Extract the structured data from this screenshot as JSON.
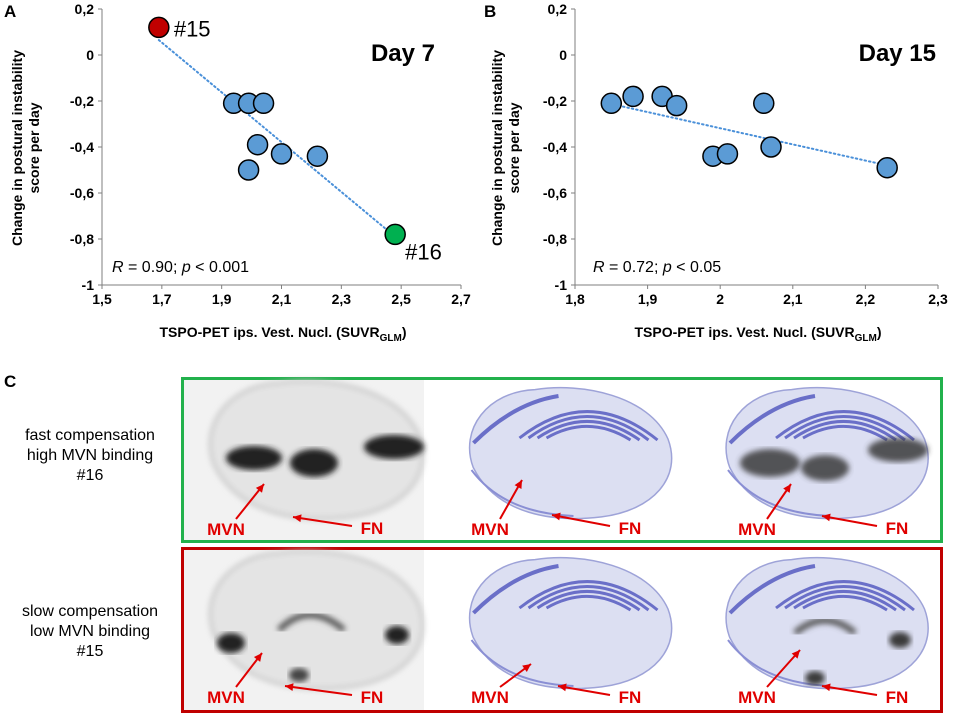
{
  "panels": {
    "a": "A",
    "b": "B",
    "c": "C"
  },
  "charts": {
    "a": {
      "ylabel_line1": "Change in postural instability",
      "ylabel_line2": "score per day",
      "xlabel_main": "TSPO-PET ips. Vest. Nucl. (SUVR",
      "xlabel_sub": "GLM",
      "xlabel_close": ")",
      "stats_r": "R",
      "stats_rest": " = 0.90; ",
      "stats_p": "p",
      "stats_tail": " < 0.001"
    },
    "b": {
      "ylabel_line1": "Change in postural instability",
      "ylabel_line2": "score per day",
      "xlabel_main": "TSPO-PET ips. Vest. Nucl. (SUVR",
      "xlabel_sub": "GLM",
      "xlabel_close": ")",
      "stats_r": "R",
      "stats_rest": " = 0.72; ",
      "stats_p": "p",
      "stats_tail": " < 0.05"
    }
  },
  "chart_data": [
    {
      "type": "scatter",
      "title": "Day 7",
      "xlabel": "TSPO-PET ips. Vest. Nucl. (SUVR GLM)",
      "ylabel": "Change in postural instability score per day",
      "xlim": [
        1.5,
        2.7
      ],
      "ylim": [
        -1,
        0.2
      ],
      "xticks": [
        "1,5",
        "1,7",
        "1,9",
        "2,1",
        "2,3",
        "2,5",
        "2,7"
      ],
      "yticks": [
        "0,2",
        "0",
        "-0,2",
        "-0,4",
        "-0,6",
        "-0,8",
        "-1"
      ],
      "points": [
        {
          "x": 1.69,
          "y": 0.12,
          "color": "#c00000",
          "label": "#15"
        },
        {
          "x": 1.94,
          "y": -0.21,
          "color": "#5b9bd5"
        },
        {
          "x": 1.99,
          "y": -0.21,
          "color": "#5b9bd5"
        },
        {
          "x": 2.04,
          "y": -0.21,
          "color": "#5b9bd5"
        },
        {
          "x": 2.02,
          "y": -0.39,
          "color": "#5b9bd5"
        },
        {
          "x": 2.1,
          "y": -0.43,
          "color": "#5b9bd5"
        },
        {
          "x": 1.99,
          "y": -0.5,
          "color": "#5b9bd5"
        },
        {
          "x": 2.22,
          "y": -0.44,
          "color": "#5b9bd5"
        },
        {
          "x": 2.48,
          "y": -0.78,
          "color": "#00b050",
          "label": "#16"
        }
      ],
      "trendline": [
        [
          1.69,
          0.065
        ],
        [
          2.48,
          -0.79
        ]
      ],
      "annotation": "R = 0.90; p < 0.001"
    },
    {
      "type": "scatter",
      "title": "Day 15",
      "xlabel": "TSPO-PET ips. Vest. Nucl. (SUVR GLM)",
      "ylabel": "Change in postural instability score per day",
      "xlim": [
        1.8,
        2.3
      ],
      "ylim": [
        -1,
        0.2
      ],
      "xticks": [
        "1,8",
        "1,9",
        "2",
        "2,1",
        "2,2",
        "2,3"
      ],
      "yticks": [
        "0,2",
        "0",
        "-0,2",
        "-0,4",
        "-0,6",
        "-0,8",
        "-1"
      ],
      "points": [
        {
          "x": 1.85,
          "y": -0.21,
          "color": "#5b9bd5"
        },
        {
          "x": 1.88,
          "y": -0.18,
          "color": "#5b9bd5"
        },
        {
          "x": 1.92,
          "y": -0.18,
          "color": "#5b9bd5"
        },
        {
          "x": 1.94,
          "y": -0.22,
          "color": "#5b9bd5"
        },
        {
          "x": 1.99,
          "y": -0.44,
          "color": "#5b9bd5"
        },
        {
          "x": 2.01,
          "y": -0.43,
          "color": "#5b9bd5"
        },
        {
          "x": 2.06,
          "y": -0.21,
          "color": "#5b9bd5"
        },
        {
          "x": 2.07,
          "y": -0.4,
          "color": "#5b9bd5"
        },
        {
          "x": 2.23,
          "y": -0.49,
          "color": "#5b9bd5"
        }
      ],
      "trendline": [
        [
          1.86,
          -0.22
        ],
        [
          2.23,
          -0.48
        ]
      ],
      "annotation": "R = 0.72; p < 0.05"
    }
  ],
  "rows": [
    {
      "label1": "fast compensation",
      "label2": "high MVN binding",
      "label3": "#16",
      "border_color": "#22b14c"
    },
    {
      "label1": "slow compensation",
      "label2": "low MVN binding",
      "label3": "#15",
      "border_color": "#c00000"
    }
  ],
  "arrow_labels": {
    "mvn": "MVN",
    "fn": "FN"
  },
  "colors": {
    "arrow": "#e00000",
    "nissl": "#6a6fc8",
    "petdark": "#222222"
  }
}
